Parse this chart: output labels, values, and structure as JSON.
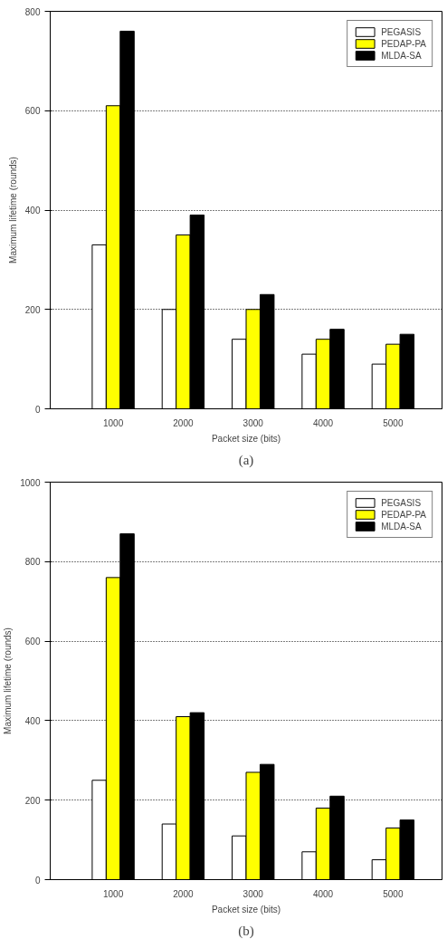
{
  "chart_data": [
    {
      "type": "bar",
      "xlabel": "Packet size (bits)",
      "ylabel": "Maximum lifetime (rounds)",
      "categories": [
        "1000",
        "2000",
        "3000",
        "4000",
        "5000"
      ],
      "ylim": [
        0,
        800
      ],
      "yticks": [
        0,
        200,
        400,
        600,
        800
      ],
      "grid": "y",
      "legend": "top right",
      "annotations": [
        "(a)"
      ],
      "series": [
        {
          "name": "PEGASIS",
          "color": "#ffffff",
          "values": [
            330,
            200,
            140,
            110,
            90
          ]
        },
        {
          "name": "PEDAP-PA",
          "color": "#ffff00",
          "values": [
            610,
            350,
            200,
            140,
            130
          ]
        },
        {
          "name": "MLDA-SA",
          "color": "#000000",
          "values": [
            760,
            390,
            230,
            160,
            150
          ]
        }
      ]
    },
    {
      "type": "bar",
      "xlabel": "Packet size (bits)",
      "ylabel": "Maximum lifetime (rounds)",
      "categories": [
        "1000",
        "2000",
        "3000",
        "4000",
        "5000"
      ],
      "ylim": [
        0,
        1000
      ],
      "yticks": [
        0,
        200,
        400,
        600,
        800,
        1000
      ],
      "grid": "y",
      "legend": "top right",
      "annotations": [
        "(b)"
      ],
      "series": [
        {
          "name": "PEGASIS",
          "color": "#ffffff",
          "values": [
            250,
            140,
            110,
            70,
            50
          ]
        },
        {
          "name": "PEDAP-PA",
          "color": "#ffff00",
          "values": [
            760,
            410,
            270,
            180,
            130
          ]
        },
        {
          "name": "MLDA-SA",
          "color": "#000000",
          "values": [
            870,
            420,
            290,
            210,
            150
          ]
        }
      ]
    }
  ]
}
